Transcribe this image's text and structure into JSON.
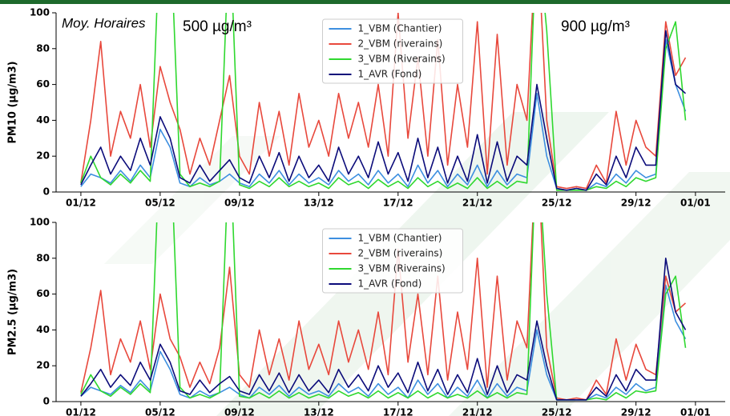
{
  "chart_data": [
    {
      "type": "line",
      "ylabel": "PM10 (µg/m3)",
      "annotations": [
        "Moy. Horaires",
        "500 µg/m³",
        "900 µg/m³"
      ],
      "xlim": [
        -1.25,
        32.5
      ],
      "ylim": [
        0,
        100
      ],
      "yticks": [
        0,
        20,
        40,
        60,
        80,
        100
      ],
      "xticks": [
        {
          "value": 0,
          "label": "01/12"
        },
        {
          "value": 4,
          "label": "05/12"
        },
        {
          "value": 8,
          "label": "09/12"
        },
        {
          "value": 12,
          "label": "13/12"
        },
        {
          "value": 16,
          "label": "17/12"
        },
        {
          "value": 20,
          "label": "21/12"
        },
        {
          "value": 24,
          "label": "25/12"
        },
        {
          "value": 28,
          "label": "29/12"
        },
        {
          "value": 31,
          "label": "01/01"
        }
      ],
      "legend": "upper center",
      "x": [
        0,
        0.5,
        1,
        1.5,
        2,
        2.5,
        3,
        3.5,
        4,
        4.5,
        5,
        5.5,
        6,
        6.5,
        7,
        7.5,
        8,
        8.5,
        9,
        9.5,
        10,
        10.5,
        11,
        11.5,
        12,
        12.5,
        13,
        13.5,
        14,
        14.5,
        15,
        15.5,
        16,
        16.5,
        17,
        17.5,
        18,
        18.5,
        19,
        19.5,
        20,
        20.5,
        21,
        21.5,
        22,
        22.5,
        23,
        23.5,
        24,
        24.5,
        25,
        25.5,
        26,
        26.5,
        27,
        27.5,
        28,
        28.5,
        29,
        29.5,
        30,
        30.5
      ],
      "series": [
        {
          "name": "1_VBM (Chantier)",
          "color": "#3d8fe0",
          "values": [
            3,
            10,
            8,
            5,
            12,
            6,
            15,
            8,
            35,
            25,
            5,
            3,
            8,
            4,
            6,
            10,
            5,
            3,
            10,
            5,
            12,
            4,
            10,
            5,
            8,
            4,
            12,
            6,
            10,
            4,
            12,
            5,
            10,
            3,
            15,
            5,
            12,
            3,
            10,
            4,
            15,
            3,
            12,
            4,
            10,
            8,
            55,
            20,
            2,
            1,
            2,
            1,
            5,
            3,
            10,
            5,
            12,
            8,
            10,
            85,
            60,
            45
          ]
        },
        {
          "name": "2_VBM (riverains)",
          "color": "#e8483c",
          "values": [
            5,
            40,
            84,
            20,
            45,
            30,
            60,
            25,
            70,
            50,
            35,
            10,
            30,
            15,
            40,
            65,
            20,
            10,
            50,
            20,
            45,
            15,
            55,
            25,
            40,
            20,
            55,
            30,
            50,
            25,
            60,
            20,
            100,
            30,
            75,
            20,
            85,
            15,
            60,
            25,
            95,
            10,
            88,
            15,
            60,
            40,
            150,
            40,
            3,
            2,
            3,
            2,
            15,
            5,
            45,
            15,
            40,
            25,
            20,
            95,
            65,
            75
          ]
        },
        {
          "name": "3_VBM (Riverains)",
          "color": "#2fd82f",
          "values": [
            5,
            20,
            8,
            4,
            10,
            5,
            12,
            6,
            150,
            150,
            10,
            3,
            5,
            3,
            6,
            150,
            4,
            2,
            6,
            3,
            8,
            3,
            6,
            3,
            5,
            2,
            8,
            4,
            6,
            2,
            7,
            3,
            6,
            2,
            8,
            3,
            6,
            2,
            5,
            2,
            8,
            2,
            6,
            2,
            6,
            5,
            150,
            90,
            1,
            1,
            1,
            1,
            3,
            2,
            6,
            3,
            8,
            6,
            8,
            80,
            95,
            40
          ]
        },
        {
          "name": "1_AVR (Fond)",
          "color": "#0b0b7a",
          "values": [
            4,
            15,
            25,
            10,
            20,
            12,
            30,
            15,
            42,
            30,
            8,
            5,
            15,
            6,
            12,
            18,
            8,
            5,
            20,
            8,
            22,
            6,
            20,
            8,
            15,
            6,
            25,
            10,
            20,
            8,
            28,
            10,
            22,
            6,
            30,
            8,
            25,
            5,
            20,
            6,
            32,
            5,
            28,
            6,
            20,
            15,
            60,
            30,
            2,
            1,
            2,
            1,
            10,
            4,
            20,
            8,
            25,
            15,
            15,
            90,
            60,
            55
          ]
        }
      ]
    },
    {
      "type": "line",
      "ylabel": "PM2.5 (µg/m3)",
      "xlim": [
        -1.25,
        32.5
      ],
      "ylim": [
        0,
        100
      ],
      "yticks": [
        0,
        20,
        40,
        60,
        80,
        100
      ],
      "xticks": [
        {
          "value": 0,
          "label": "01/12"
        },
        {
          "value": 4,
          "label": "05/12"
        },
        {
          "value": 8,
          "label": "09/12"
        },
        {
          "value": 12,
          "label": "13/12"
        },
        {
          "value": 16,
          "label": "17/12"
        },
        {
          "value": 20,
          "label": "21/12"
        },
        {
          "value": 24,
          "label": "25/12"
        },
        {
          "value": 28,
          "label": "29/12"
        },
        {
          "value": 31,
          "label": "01/01"
        }
      ],
      "legend": "upper center",
      "x": [
        0,
        0.5,
        1,
        1.5,
        2,
        2.5,
        3,
        3.5,
        4,
        4.5,
        5,
        5.5,
        6,
        6.5,
        7,
        7.5,
        8,
        8.5,
        9,
        9.5,
        10,
        10.5,
        11,
        11.5,
        12,
        12.5,
        13,
        13.5,
        14,
        14.5,
        15,
        15.5,
        16,
        16.5,
        17,
        17.5,
        18,
        18.5,
        19,
        19.5,
        20,
        20.5,
        21,
        21.5,
        22,
        22.5,
        23,
        23.5,
        24,
        24.5,
        25,
        25.5,
        26,
        26.5,
        27,
        27.5,
        28,
        28.5,
        29,
        29.5,
        30,
        30.5
      ],
      "series": [
        {
          "name": "1_VBM (Chantier)",
          "color": "#3d8fe0",
          "values": [
            3,
            8,
            6,
            4,
            9,
            5,
            12,
            6,
            28,
            18,
            4,
            2,
            6,
            3,
            5,
            8,
            4,
            2,
            8,
            4,
            9,
            3,
            8,
            4,
            6,
            3,
            10,
            5,
            8,
            3,
            10,
            4,
            8,
            2,
            12,
            4,
            10,
            2,
            8,
            3,
            12,
            2,
            10,
            3,
            8,
            6,
            40,
            15,
            1,
            1,
            1,
            1,
            4,
            2,
            8,
            4,
            10,
            6,
            8,
            65,
            45,
            35
          ]
        },
        {
          "name": "2_VBM (riverains)",
          "color": "#e8483c",
          "values": [
            5,
            30,
            62,
            15,
            35,
            22,
            45,
            18,
            60,
            35,
            25,
            8,
            22,
            10,
            30,
            75,
            15,
            8,
            40,
            15,
            35,
            12,
            45,
            18,
            32,
            15,
            45,
            22,
            40,
            18,
            50,
            15,
            85,
            22,
            60,
            15,
            70,
            12,
            50,
            18,
            80,
            8,
            70,
            12,
            45,
            30,
            150,
            30,
            2,
            1,
            2,
            1,
            12,
            4,
            35,
            12,
            32,
            18,
            15,
            70,
            50,
            55
          ]
        },
        {
          "name": "3_VBM (Riverains)",
          "color": "#2fd82f",
          "values": [
            4,
            15,
            6,
            3,
            8,
            4,
            10,
            5,
            150,
            150,
            8,
            2,
            4,
            2,
            5,
            150,
            3,
            2,
            5,
            2,
            6,
            2,
            5,
            2,
            4,
            2,
            6,
            3,
            5,
            2,
            6,
            2,
            5,
            2,
            6,
            2,
            5,
            2,
            4,
            2,
            6,
            2,
            5,
            2,
            5,
            4,
            150,
            60,
            1,
            1,
            1,
            1,
            2,
            1,
            5,
            2,
            6,
            5,
            6,
            60,
            70,
            30
          ]
        },
        {
          "name": "1_AVR (Fond)",
          "color": "#0b0b7a",
          "values": [
            3,
            10,
            18,
            8,
            15,
            9,
            22,
            12,
            32,
            22,
            6,
            4,
            12,
            5,
            10,
            14,
            6,
            4,
            15,
            6,
            16,
            5,
            15,
            6,
            12,
            5,
            18,
            8,
            15,
            6,
            20,
            8,
            16,
            5,
            22,
            6,
            18,
            4,
            15,
            5,
            24,
            4,
            20,
            5,
            15,
            12,
            45,
            20,
            1,
            1,
            1,
            1,
            8,
            3,
            15,
            6,
            18,
            12,
            12,
            80,
            50,
            40
          ]
        }
      ]
    }
  ]
}
